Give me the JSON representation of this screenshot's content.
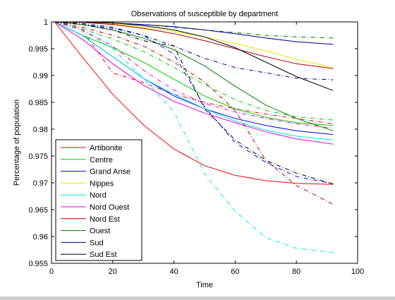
{
  "chart_data": {
    "type": "line",
    "title": "Observations of susceptible by department",
    "xlabel": "Time",
    "ylabel": "Percentage of population",
    "xlim": [
      0,
      100
    ],
    "ylim": [
      0.955,
      1
    ],
    "x_ticks": [
      "0",
      "20",
      "40",
      "60",
      "80",
      "100"
    ],
    "y_ticks": [
      "0.955",
      "0.96",
      "0.965",
      "0.97",
      "0.975",
      "0.98",
      "0.985",
      "0.99",
      "0.995",
      "1"
    ],
    "legend_position": "bottom-left",
    "x": [
      1,
      10,
      20,
      30,
      40,
      50,
      60,
      70,
      80,
      92
    ],
    "series": [
      {
        "name": "Artibonite",
        "color": "#ff0000",
        "solid": [
          1,
          0.9935,
          0.9865,
          0.9808,
          0.9763,
          0.9732,
          0.9714,
          0.9704,
          0.9699,
          0.9697
        ],
        "dashed": [
          1,
          0.9985,
          0.9905,
          0.9887,
          0.9865,
          0.985,
          0.9838,
          0.9828,
          0.982,
          0.981
        ]
      },
      {
        "name": "Centre",
        "color": "#00cc00",
        "solid": [
          1,
          0.9975,
          0.9952,
          0.9925,
          0.9893,
          0.9862,
          0.9838,
          0.9822,
          0.9812,
          0.9807
        ],
        "dashed": [
          1,
          0.9987,
          0.9968,
          0.9945,
          0.9915,
          0.9883,
          0.9855,
          0.9835,
          0.9823,
          0.9817
        ]
      },
      {
        "name": "Grand Anse",
        "color": "#0000ff",
        "solid": [
          1,
          0.9975,
          0.9935,
          0.9895,
          0.9862,
          0.9838,
          0.982,
          0.9807,
          0.9797,
          0.979
        ],
        "dashed": [
          1,
          0.9995,
          0.9988,
          0.9975,
          0.994,
          0.9842,
          0.9775,
          0.9738,
          0.9712,
          0.9698
        ]
      },
      {
        "name": "Nippes",
        "color": "#e6e600",
        "solid": [
          1,
          1,
          0.9996,
          0.999,
          0.9982,
          0.9972,
          0.996,
          0.9946,
          0.993,
          0.9915
        ],
        "dashed": [
          1,
          1,
          0.9998,
          0.9995,
          0.999,
          0.9985,
          0.998,
          0.9975,
          0.9972,
          0.997
        ]
      },
      {
        "name": "Nord",
        "color": "#00e6e6",
        "solid": [
          1,
          0.9975,
          0.9935,
          0.9895,
          0.9865,
          0.9838,
          0.9815,
          0.9798,
          0.9787,
          0.978
        ],
        "dashed": [
          1,
          0.9985,
          0.995,
          0.9895,
          0.9832,
          0.9717,
          0.9647,
          0.9598,
          0.9578,
          0.957
        ]
      },
      {
        "name": "Nord Ouest",
        "color": "#e600e6",
        "solid": [
          1,
          0.9968,
          0.9922,
          0.9882,
          0.9852,
          0.983,
          0.9812,
          0.9795,
          0.9782,
          0.9772
        ],
        "dashed": [
          1,
          0.9985,
          0.9955,
          0.991,
          0.9873,
          0.9848,
          0.9832,
          0.982,
          0.981,
          0.9802
        ]
      },
      {
        "name": "Nord Est",
        "color": "#aa0000",
        "solid": [
          1,
          0.9999,
          0.9995,
          0.9988,
          0.9978,
          0.9965,
          0.995,
          0.9935,
          0.9922,
          0.9913
        ],
        "dashed": [
          1,
          0.999,
          0.9975,
          0.9955,
          0.9925,
          0.9888,
          0.9835,
          0.9742,
          0.9695,
          0.966
        ]
      },
      {
        "name": "Ouest",
        "color": "#008000",
        "solid": [
          1,
          0.9995,
          0.9985,
          0.997,
          0.9948,
          0.9918,
          0.988,
          0.9845,
          0.982,
          0.9797
        ],
        "dashed": [
          1,
          1,
          0.9998,
          0.9995,
          0.999,
          0.9985,
          0.998,
          0.9975,
          0.9972,
          0.997
        ]
      },
      {
        "name": "Sud",
        "color": "#00008b",
        "solid": [
          1,
          1,
          0.9998,
          0.9995,
          0.9991,
          0.9985,
          0.9978,
          0.997,
          0.9963,
          0.9958
        ],
        "dashed": [
          1,
          0.9997,
          0.999,
          0.9975,
          0.9955,
          0.9932,
          0.9915,
          0.9905,
          0.9895,
          0.9892
        ]
      },
      {
        "name": "Sud Est",
        "color": "#000000",
        "solid": [
          1,
          1,
          0.9998,
          0.9993,
          0.9985,
          0.9972,
          0.9952,
          0.9925,
          0.9898,
          0.9872
        ],
        "dashed": [
          1,
          0.9995,
          0.9985,
          0.9965,
          0.9955,
          0.9838,
          0.978,
          0.9742,
          0.9718,
          0.9698
        ]
      }
    ]
  }
}
